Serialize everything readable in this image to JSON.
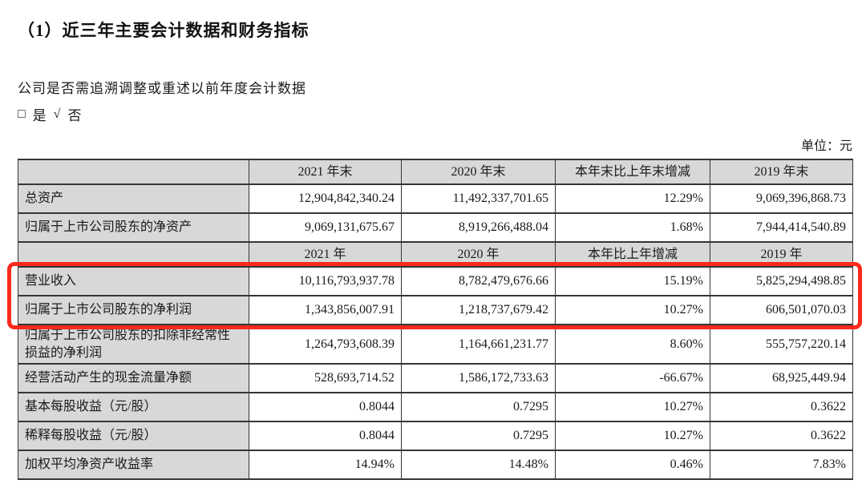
{
  "doc": {
    "title": "（1）近三年主要会计数据和财务指标",
    "question": "公司是否需追溯调整或重述以前年度会计数据",
    "checkbox": {
      "unchecked_symbol": "□",
      "yes_label": "是",
      "check_symbol": "√",
      "no_label": "否"
    },
    "unit_label": "单位：元"
  },
  "table": {
    "header_period_end": {
      "y2021": "2021 年末",
      "y2020": "2020 年末",
      "change": "本年末比上年末增减",
      "y2019": "2019 年末"
    },
    "header_annual": {
      "y2021": "2021 年",
      "y2020": "2020 年",
      "change": "本年比上年增减",
      "y2019": "2019 年"
    },
    "rows": [
      {
        "label": "总资产",
        "y2021": "12,904,842,340.24",
        "y2020": "11,492,337,701.65",
        "change": "12.29%",
        "y2019": "9,069,396,868.73",
        "highlighted": false
      },
      {
        "label": "归属于上市公司股东的净资产",
        "y2021": "9,069,131,675.67",
        "y2020": "8,919,266,488.04",
        "change": "1.68%",
        "y2019": "7,944,414,540.89",
        "highlighted": false
      },
      {
        "label": "营业收入",
        "y2021": "10,116,793,937.78",
        "y2020": "8,782,479,676.66",
        "change": "15.19%",
        "y2019": "5,825,294,498.85",
        "highlighted": true
      },
      {
        "label": "归属于上市公司股东的净利润",
        "y2021": "1,343,856,007.91",
        "y2020": "1,218,737,679.42",
        "change": "10.27%",
        "y2019": "606,501,070.03",
        "highlighted": true
      },
      {
        "label": "归属于上市公司股东的扣除非经常性损益的净利润",
        "y2021": "1,264,793,608.39",
        "y2020": "1,164,661,231.77",
        "change": "8.60%",
        "y2019": "555,757,220.14",
        "highlighted": false
      },
      {
        "label": "经营活动产生的现金流量净额",
        "y2021": "528,693,714.52",
        "y2020": "1,586,172,733.63",
        "change": "-66.67%",
        "y2019": "68,925,449.94",
        "highlighted": false
      },
      {
        "label": "基本每股收益（元/股）",
        "y2021": "0.8044",
        "y2020": "0.7295",
        "change": "10.27%",
        "y2019": "0.3622",
        "highlighted": false
      },
      {
        "label": "稀释每股收益（元/股）",
        "y2021": "0.8044",
        "y2020": "0.7295",
        "change": "10.27%",
        "y2019": "0.3622",
        "highlighted": false
      },
      {
        "label": "加权平均净资产收益率",
        "y2021": "14.94%",
        "y2020": "14.48%",
        "change": "0.46%",
        "y2019": "7.83%",
        "highlighted": false
      }
    ]
  },
  "annotation": {
    "highlight_color": "#fa2a1c",
    "highlighted_rows": [
      "营业收入",
      "归属于上市公司股东的净利润"
    ]
  }
}
